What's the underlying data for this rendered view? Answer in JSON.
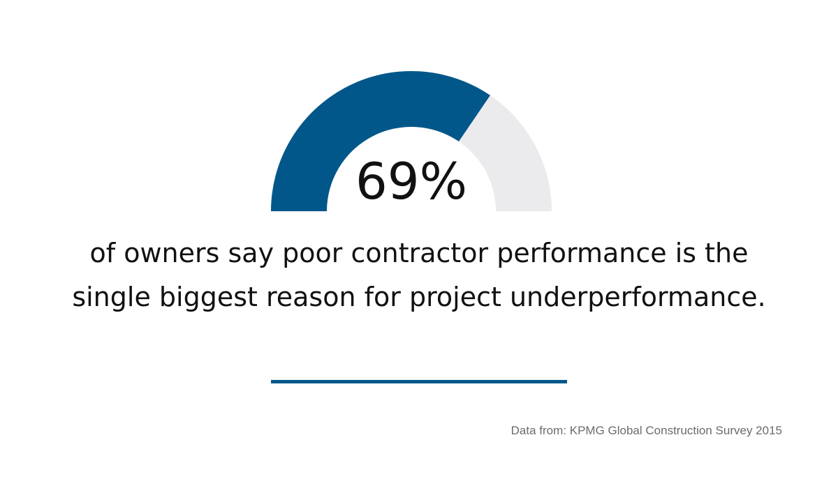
{
  "chart_data": {
    "type": "gauge",
    "value": 69,
    "max": 100,
    "value_label": "69%",
    "statement": "of owners say poor contractor performance is the single biggest reason for project underperformance.",
    "source": "Data from: KPMG Global Construction Survey 2015"
  },
  "colors": {
    "accent": "#02578a",
    "track": "#ebebed",
    "text": "#111111",
    "source_text": "#6b6b6b"
  }
}
